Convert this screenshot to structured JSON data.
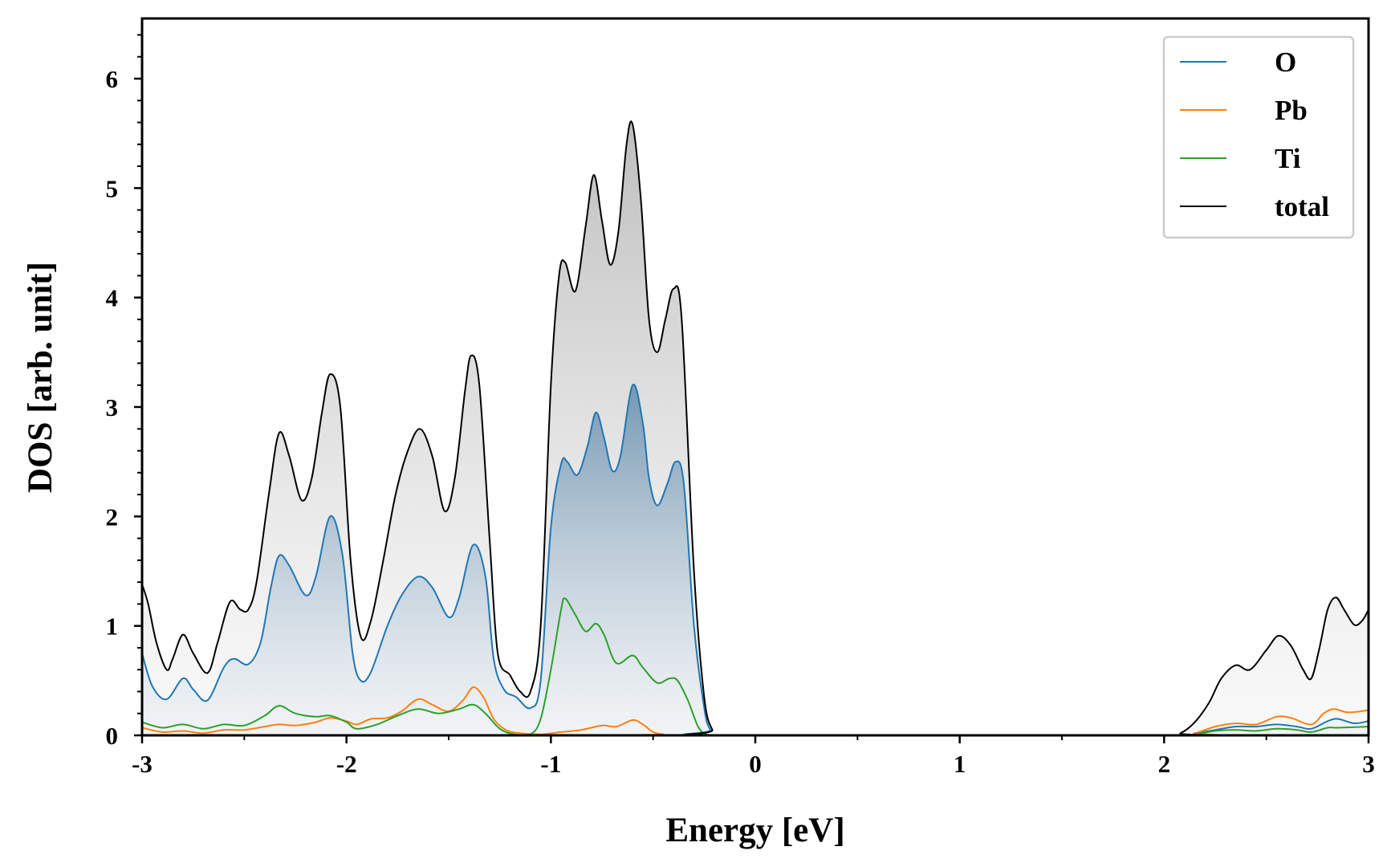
{
  "chart_data": {
    "type": "area",
    "xlabel": "Energy [eV]",
    "ylabel": "DOS [arb. unit]",
    "xlim": [
      -3,
      3
    ],
    "ylim": [
      0,
      6.55
    ],
    "x_ticks": [
      -3,
      -2,
      -1,
      0,
      1,
      2,
      3
    ],
    "x_tick_labels": [
      "-3",
      "-2",
      "-1",
      "0",
      "1",
      "2",
      "3"
    ],
    "y_ticks": [
      0,
      1,
      2,
      3,
      4,
      5,
      6
    ],
    "y_tick_labels": [
      "0",
      "1",
      "2",
      "3",
      "4",
      "5",
      "6"
    ],
    "legend_position": "top-right",
    "grid": false,
    "series": [
      {
        "name": "O",
        "color": "#1f77b4",
        "points": [
          [
            -3.0,
            0.75
          ],
          [
            -2.95,
            0.45
          ],
          [
            -2.88,
            0.33
          ],
          [
            -2.8,
            0.52
          ],
          [
            -2.75,
            0.42
          ],
          [
            -2.68,
            0.32
          ],
          [
            -2.6,
            0.62
          ],
          [
            -2.55,
            0.7
          ],
          [
            -2.48,
            0.65
          ],
          [
            -2.42,
            0.85
          ],
          [
            -2.37,
            1.35
          ],
          [
            -2.33,
            1.64
          ],
          [
            -2.28,
            1.55
          ],
          [
            -2.2,
            1.28
          ],
          [
            -2.15,
            1.45
          ],
          [
            -2.08,
            2.0
          ],
          [
            -2.02,
            1.65
          ],
          [
            -1.97,
            0.75
          ],
          [
            -1.93,
            0.5
          ],
          [
            -1.88,
            0.58
          ],
          [
            -1.8,
            1.0
          ],
          [
            -1.73,
            1.28
          ],
          [
            -1.65,
            1.45
          ],
          [
            -1.58,
            1.35
          ],
          [
            -1.5,
            1.08
          ],
          [
            -1.45,
            1.25
          ],
          [
            -1.38,
            1.74
          ],
          [
            -1.32,
            1.45
          ],
          [
            -1.28,
            0.7
          ],
          [
            -1.23,
            0.42
          ],
          [
            -1.17,
            0.35
          ],
          [
            -1.1,
            0.25
          ],
          [
            -1.05,
            0.5
          ],
          [
            -1.0,
            1.9
          ],
          [
            -0.95,
            2.48
          ],
          [
            -0.92,
            2.5
          ],
          [
            -0.87,
            2.38
          ],
          [
            -0.82,
            2.65
          ],
          [
            -0.78,
            2.95
          ],
          [
            -0.74,
            2.72
          ],
          [
            -0.7,
            2.42
          ],
          [
            -0.66,
            2.55
          ],
          [
            -0.6,
            3.2
          ],
          [
            -0.55,
            2.85
          ],
          [
            -0.52,
            2.35
          ],
          [
            -0.48,
            2.1
          ],
          [
            -0.43,
            2.3
          ],
          [
            -0.39,
            2.5
          ],
          [
            -0.35,
            2.3
          ],
          [
            -0.3,
            1.0
          ],
          [
            -0.25,
            0.25
          ],
          [
            -0.22,
            0.05
          ],
          [
            -0.18,
            0.0
          ],
          [
            2.0,
            0.0
          ],
          [
            2.15,
            0.02
          ],
          [
            2.25,
            0.05
          ],
          [
            2.35,
            0.08
          ],
          [
            2.45,
            0.08
          ],
          [
            2.55,
            0.1
          ],
          [
            2.65,
            0.08
          ],
          [
            2.72,
            0.06
          ],
          [
            2.8,
            0.13
          ],
          [
            2.85,
            0.15
          ],
          [
            2.93,
            0.11
          ],
          [
            3.0,
            0.13
          ]
        ]
      },
      {
        "name": "Pb",
        "color": "#ff7f0e",
        "points": [
          [
            -3.0,
            0.07
          ],
          [
            -2.9,
            0.03
          ],
          [
            -2.8,
            0.04
          ],
          [
            -2.7,
            0.02
          ],
          [
            -2.6,
            0.05
          ],
          [
            -2.5,
            0.05
          ],
          [
            -2.4,
            0.08
          ],
          [
            -2.33,
            0.1
          ],
          [
            -2.25,
            0.09
          ],
          [
            -2.15,
            0.12
          ],
          [
            -2.08,
            0.16
          ],
          [
            -2.0,
            0.13
          ],
          [
            -1.95,
            0.1
          ],
          [
            -1.88,
            0.15
          ],
          [
            -1.8,
            0.16
          ],
          [
            -1.73,
            0.22
          ],
          [
            -1.65,
            0.33
          ],
          [
            -1.58,
            0.28
          ],
          [
            -1.5,
            0.22
          ],
          [
            -1.43,
            0.32
          ],
          [
            -1.38,
            0.44
          ],
          [
            -1.33,
            0.35
          ],
          [
            -1.28,
            0.15
          ],
          [
            -1.22,
            0.05
          ],
          [
            -1.15,
            0.02
          ],
          [
            -1.05,
            0.01
          ],
          [
            -0.95,
            0.03
          ],
          [
            -0.85,
            0.05
          ],
          [
            -0.75,
            0.09
          ],
          [
            -0.68,
            0.08
          ],
          [
            -0.6,
            0.14
          ],
          [
            -0.55,
            0.1
          ],
          [
            -0.5,
            0.03
          ],
          [
            -0.45,
            0.01
          ],
          [
            -0.4,
            0.0
          ],
          [
            2.05,
            0.0
          ],
          [
            2.15,
            0.02
          ],
          [
            2.25,
            0.08
          ],
          [
            2.35,
            0.11
          ],
          [
            2.45,
            0.1
          ],
          [
            2.55,
            0.17
          ],
          [
            2.62,
            0.16
          ],
          [
            2.72,
            0.1
          ],
          [
            2.78,
            0.2
          ],
          [
            2.83,
            0.24
          ],
          [
            2.9,
            0.21
          ],
          [
            3.0,
            0.23
          ]
        ]
      },
      {
        "name": "Ti",
        "color": "#2ca02c",
        "points": [
          [
            -3.0,
            0.12
          ],
          [
            -2.9,
            0.07
          ],
          [
            -2.8,
            0.1
          ],
          [
            -2.7,
            0.06
          ],
          [
            -2.6,
            0.1
          ],
          [
            -2.5,
            0.09
          ],
          [
            -2.4,
            0.18
          ],
          [
            -2.33,
            0.27
          ],
          [
            -2.25,
            0.2
          ],
          [
            -2.15,
            0.17
          ],
          [
            -2.08,
            0.18
          ],
          [
            -2.0,
            0.12
          ],
          [
            -1.95,
            0.06
          ],
          [
            -1.85,
            0.1
          ],
          [
            -1.75,
            0.18
          ],
          [
            -1.65,
            0.24
          ],
          [
            -1.55,
            0.2
          ],
          [
            -1.45,
            0.24
          ],
          [
            -1.38,
            0.28
          ],
          [
            -1.32,
            0.2
          ],
          [
            -1.25,
            0.06
          ],
          [
            -1.18,
            0.01
          ],
          [
            -1.1,
            0.01
          ],
          [
            -1.05,
            0.15
          ],
          [
            -1.0,
            0.6
          ],
          [
            -0.95,
            1.15
          ],
          [
            -0.93,
            1.25
          ],
          [
            -0.88,
            1.1
          ],
          [
            -0.83,
            0.95
          ],
          [
            -0.78,
            1.02
          ],
          [
            -0.74,
            0.92
          ],
          [
            -0.68,
            0.66
          ],
          [
            -0.6,
            0.73
          ],
          [
            -0.55,
            0.62
          ],
          [
            -0.48,
            0.48
          ],
          [
            -0.42,
            0.52
          ],
          [
            -0.38,
            0.5
          ],
          [
            -0.33,
            0.32
          ],
          [
            -0.28,
            0.08
          ],
          [
            -0.24,
            0.01
          ],
          [
            -0.2,
            0.0
          ],
          [
            2.05,
            0.0
          ],
          [
            2.15,
            0.01
          ],
          [
            2.25,
            0.04
          ],
          [
            2.35,
            0.05
          ],
          [
            2.45,
            0.04
          ],
          [
            2.55,
            0.06
          ],
          [
            2.65,
            0.05
          ],
          [
            2.72,
            0.03
          ],
          [
            2.8,
            0.07
          ],
          [
            2.85,
            0.07
          ],
          [
            3.0,
            0.08
          ]
        ]
      },
      {
        "name": "total",
        "color": "#000000",
        "points": [
          [
            -3.0,
            1.38
          ],
          [
            -2.97,
            1.2
          ],
          [
            -2.93,
            0.85
          ],
          [
            -2.88,
            0.6
          ],
          [
            -2.85,
            0.7
          ],
          [
            -2.8,
            0.92
          ],
          [
            -2.75,
            0.75
          ],
          [
            -2.68,
            0.57
          ],
          [
            -2.63,
            0.85
          ],
          [
            -2.57,
            1.22
          ],
          [
            -2.52,
            1.15
          ],
          [
            -2.48,
            1.15
          ],
          [
            -2.44,
            1.4
          ],
          [
            -2.38,
            2.2
          ],
          [
            -2.33,
            2.76
          ],
          [
            -2.28,
            2.55
          ],
          [
            -2.22,
            2.15
          ],
          [
            -2.17,
            2.35
          ],
          [
            -2.12,
            2.95
          ],
          [
            -2.08,
            3.3
          ],
          [
            -2.03,
            3.0
          ],
          [
            -1.98,
            1.6
          ],
          [
            -1.93,
            0.9
          ],
          [
            -1.88,
            1.05
          ],
          [
            -1.82,
            1.6
          ],
          [
            -1.76,
            2.2
          ],
          [
            -1.7,
            2.6
          ],
          [
            -1.64,
            2.8
          ],
          [
            -1.58,
            2.55
          ],
          [
            -1.52,
            2.05
          ],
          [
            -1.47,
            2.35
          ],
          [
            -1.42,
            3.15
          ],
          [
            -1.39,
            3.47
          ],
          [
            -1.35,
            3.2
          ],
          [
            -1.3,
            1.8
          ],
          [
            -1.26,
            0.75
          ],
          [
            -1.2,
            0.55
          ],
          [
            -1.15,
            0.4
          ],
          [
            -1.1,
            0.4
          ],
          [
            -1.05,
            1.0
          ],
          [
            -1.0,
            3.2
          ],
          [
            -0.96,
            4.2
          ],
          [
            -0.93,
            4.32
          ],
          [
            -0.88,
            4.06
          ],
          [
            -0.83,
            4.65
          ],
          [
            -0.79,
            5.12
          ],
          [
            -0.75,
            4.7
          ],
          [
            -0.71,
            4.3
          ],
          [
            -0.67,
            4.6
          ],
          [
            -0.63,
            5.4
          ],
          [
            -0.6,
            5.58
          ],
          [
            -0.56,
            4.9
          ],
          [
            -0.52,
            3.8
          ],
          [
            -0.48,
            3.5
          ],
          [
            -0.44,
            3.8
          ],
          [
            -0.4,
            4.08
          ],
          [
            -0.36,
            3.8
          ],
          [
            -0.3,
            1.5
          ],
          [
            -0.25,
            0.35
          ],
          [
            -0.21,
            0.05
          ],
          [
            -0.17,
            0.0
          ],
          [
            2.0,
            0.0
          ],
          [
            2.08,
            0.02
          ],
          [
            2.15,
            0.12
          ],
          [
            2.22,
            0.3
          ],
          [
            2.28,
            0.52
          ],
          [
            2.35,
            0.64
          ],
          [
            2.42,
            0.6
          ],
          [
            2.5,
            0.78
          ],
          [
            2.56,
            0.91
          ],
          [
            2.62,
            0.82
          ],
          [
            2.68,
            0.6
          ],
          [
            2.72,
            0.52
          ],
          [
            2.76,
            0.8
          ],
          [
            2.8,
            1.15
          ],
          [
            2.84,
            1.26
          ],
          [
            2.88,
            1.15
          ],
          [
            2.93,
            1.01
          ],
          [
            2.97,
            1.05
          ],
          [
            3.0,
            1.15
          ]
        ]
      }
    ]
  }
}
